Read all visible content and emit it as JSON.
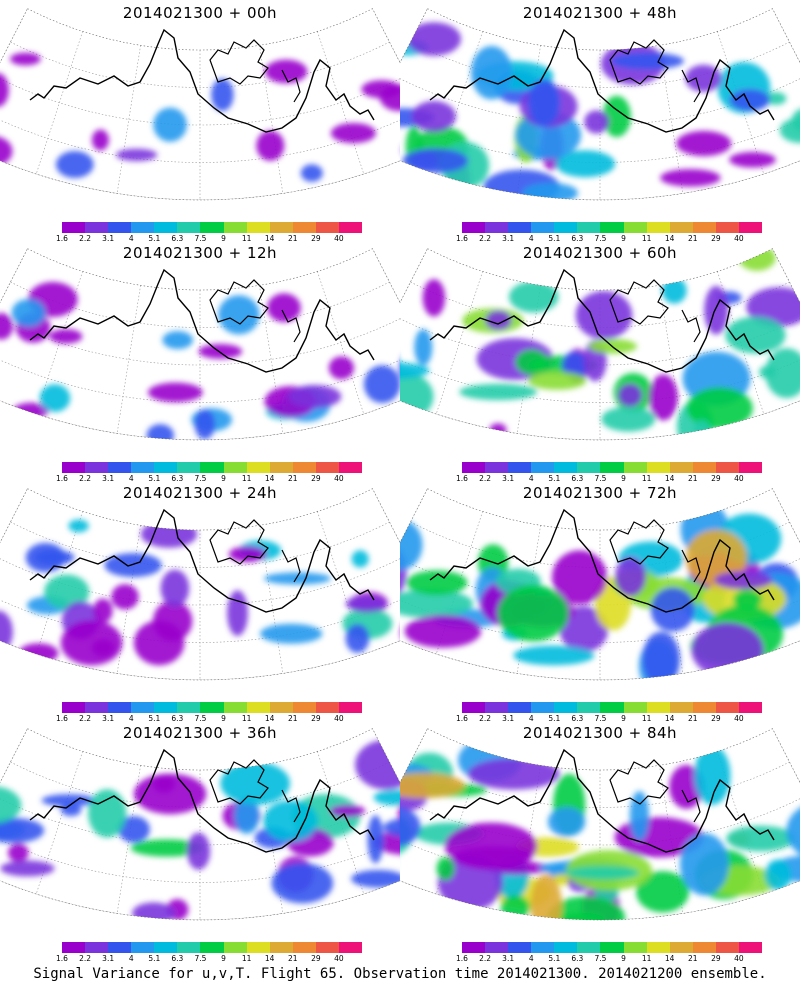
{
  "panels": [
    {
      "title": "2014021300 + 00h",
      "intensity": 0.15
    },
    {
      "title": "2014021300 + 48h",
      "intensity": 0.65
    },
    {
      "title": "2014021300 + 12h",
      "intensity": 0.3
    },
    {
      "title": "2014021300 + 60h",
      "intensity": 0.7
    },
    {
      "title": "2014021300 + 24h",
      "intensity": 0.45
    },
    {
      "title": "2014021300 + 72h",
      "intensity": 0.8
    },
    {
      "title": "2014021300 + 36h",
      "intensity": 0.55
    },
    {
      "title": "2014021300 + 84h",
      "intensity": 0.9
    }
  ],
  "colorbar": {
    "colors": [
      "#9900cc",
      "#7a33dd",
      "#3355ee",
      "#2299ee",
      "#00bbdd",
      "#22ccaa",
      "#00cc44",
      "#88dd33",
      "#dddd22",
      "#ddaa33",
      "#ee8833",
      "#ee5544",
      "#ee1177"
    ],
    "labels": [
      "1.6",
      "2.2",
      "3.1",
      "4",
      "5.1",
      "6.3",
      "7.5",
      "9",
      "11",
      "14",
      "21",
      "29",
      "40"
    ]
  },
  "caption": "Signal Variance for u,v,T. Flight 65. Observation time 2014021300. 2014021200 ensemble."
}
